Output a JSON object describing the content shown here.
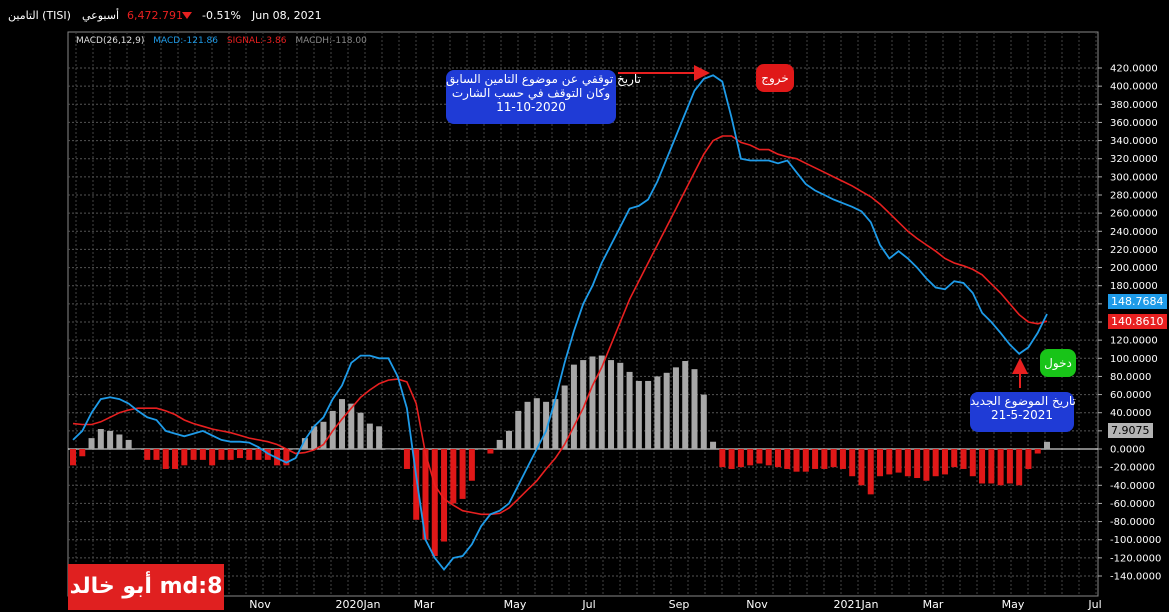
{
  "header": {
    "ticker": "التامين (TISI)",
    "period": "أسبوعي",
    "price": "6,472.791",
    "change": "-0.51%",
    "date": "Jun 08, 2021",
    "down_arrow": "triangle-down-icon"
  },
  "legend": {
    "name": "MACD(26,12,9)",
    "macd": "MACD:-121.86",
    "signal": "SIGNAL:-3.86",
    "macdh": "MACDH:-118.00"
  },
  "annotations": {
    "exit_note": [
      "تاريخ توقفي عن موضوع التامين السابق",
      "وكان التوقف في حسب الشارت",
      "11-10-2020"
    ],
    "exit_label": "خروج",
    "entry_label": "دخول",
    "entry_note": [
      "تاريخ الموضوع الجديد",
      "21-5-2021"
    ]
  },
  "price_labels": {
    "macd": "148.7684",
    "signal": "140.8610",
    "hist": "7.9075"
  },
  "brand": "أبو خالد md:8",
  "colors": {
    "macd": "#1e9be8",
    "signal": "#e82020",
    "hist_pos": "#a8a8a8",
    "hist_neg": "#e01818",
    "note_bg": "#1f3bd6",
    "exit_bg": "#e01818",
    "entry_bg": "#18c418"
  },
  "chart_data": {
    "type": "line",
    "x_tick_labels": [
      "Nov",
      "2020Jan",
      "Mar",
      "May",
      "Jul",
      "Sep",
      "Nov",
      "2021Jan",
      "Mar",
      "May",
      "Jul"
    ],
    "y_ticks": [
      420,
      400,
      380,
      360,
      340,
      320,
      300,
      280,
      260,
      240,
      220,
      200,
      180,
      160,
      140,
      120,
      100,
      80,
      60,
      40,
      20,
      0,
      -20,
      -40,
      -60,
      -80,
      -100,
      -120,
      -140
    ],
    "ylim": [
      -140,
      420
    ],
    "grid": true,
    "series": [
      {
        "name": "MACD",
        "values": [
          10,
          20,
          40,
          55,
          57,
          55,
          50,
          42,
          35,
          32,
          20,
          17,
          14,
          17,
          20,
          15,
          10,
          8,
          8,
          7,
          2,
          -5,
          -10,
          -15,
          -10,
          10,
          25,
          35,
          55,
          70,
          95,
          103,
          103,
          100,
          100,
          80,
          45,
          -30,
          -100,
          -120,
          -133,
          -120,
          -118,
          -105,
          -85,
          -72,
          -68,
          -60,
          -40,
          -20,
          0,
          20,
          55,
          95,
          130,
          160,
          180,
          205,
          225,
          245,
          265,
          268,
          275,
          295,
          320,
          345,
          370,
          395,
          408,
          412,
          405,
          365,
          320,
          318,
          318,
          318,
          315,
          318,
          305,
          292,
          285,
          280,
          275,
          271,
          267,
          262,
          250,
          225,
          210,
          218,
          210,
          200,
          188,
          178,
          176,
          185,
          183,
          172,
          150,
          140,
          128,
          115,
          105,
          112,
          128,
          148.77
        ]
      },
      {
        "name": "SIGNAL",
        "values": [
          28,
          27,
          27,
          30,
          35,
          40,
          43,
          45,
          45,
          45,
          42,
          38,
          32,
          28,
          25,
          22,
          20,
          18,
          15,
          12,
          10,
          8,
          5,
          0,
          -5,
          -4,
          -1,
          5,
          20,
          33,
          45,
          57,
          65,
          72,
          76,
          77,
          74,
          50,
          -5,
          -40,
          -55,
          -62,
          -68,
          -70,
          -72,
          -72,
          -71,
          -65,
          -55,
          -45,
          -35,
          -22,
          -10,
          5,
          25,
          45,
          70,
          90,
          115,
          140,
          165,
          185,
          205,
          225,
          245,
          265,
          285,
          305,
          325,
          340,
          345,
          345,
          338,
          335,
          330,
          330,
          325,
          322,
          320,
          315,
          310,
          305,
          300,
          295,
          290,
          284,
          278,
          270,
          260,
          250,
          240,
          232,
          225,
          218,
          210,
          205,
          202,
          198,
          192,
          182,
          172,
          160,
          148,
          140,
          138,
          140.86
        ]
      },
      {
        "name": "MACDH",
        "values": [
          -18,
          -8,
          12,
          22,
          20,
          16,
          10,
          0,
          -12,
          -12,
          -22,
          -22,
          -18,
          -12,
          -12,
          -18,
          -12,
          -12,
          -10,
          -12,
          -12,
          -12,
          -18,
          -18,
          0,
          12,
          25,
          30,
          42,
          55,
          50,
          40,
          28,
          25,
          0,
          0,
          -22,
          -78,
          -100,
          -118,
          -102,
          -60,
          -55,
          -35,
          0,
          -5,
          10,
          20,
          42,
          52,
          56,
          52,
          55,
          70,
          93,
          98,
          102,
          103,
          98,
          95,
          85,
          75,
          75,
          80,
          84,
          90,
          97,
          88,
          60,
          8,
          -20,
          -22,
          -20,
          -18,
          -16,
          -18,
          -20,
          -22,
          -25,
          -25,
          -22,
          -22,
          -20,
          -22,
          -30,
          -40,
          -50,
          -30,
          -28,
          -26,
          -30,
          -32,
          -35,
          -30,
          -28,
          -20,
          -22,
          -30,
          -38,
          -38,
          -40,
          -38,
          -40,
          -22,
          -5,
          7.91
        ]
      }
    ]
  }
}
